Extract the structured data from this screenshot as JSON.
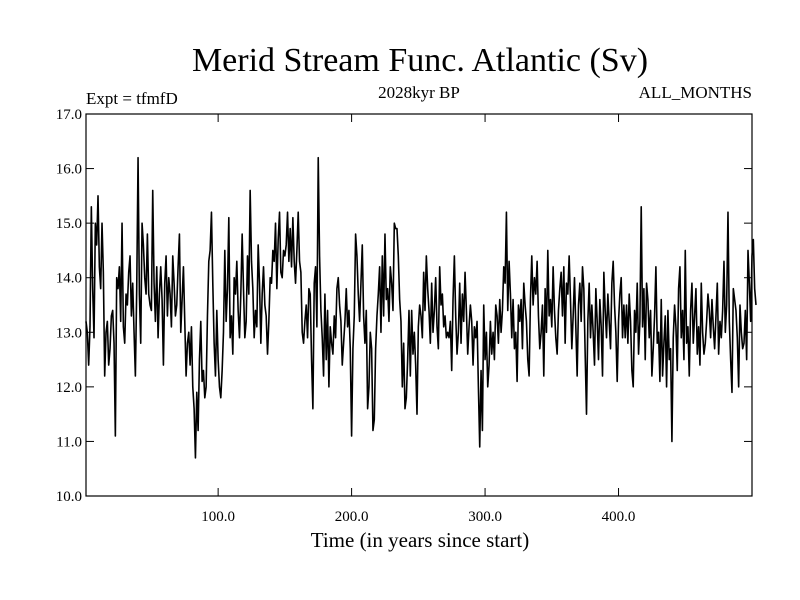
{
  "chart_data": {
    "type": "line",
    "title": "Merid Stream Func. Atlantic (Sv)",
    "subtitle_left": "Expt = tfmfD",
    "subtitle_center": "2028kyr BP",
    "subtitle_right": "ALL_MONTHS",
    "xlabel": "Time (in years since start)",
    "ylabel": "",
    "xlim": [
      1,
      500
    ],
    "ylim": [
      10.0,
      17.0
    ],
    "xticks": [
      100,
      200,
      300,
      400
    ],
    "xtick_labels": [
      "100.0",
      "200.0",
      "300.0",
      "400.0"
    ],
    "yticks": [
      10,
      11,
      12,
      13,
      14,
      15,
      16,
      17
    ],
    "ytick_labels": [
      "10.0",
      "11.0",
      "12.0",
      "13.0",
      "14.0",
      "15.0",
      "16.0",
      "17.0"
    ],
    "series": [
      {
        "name": "Merid Stream Func. Atlantic",
        "x_start": 1,
        "x_step": 1,
        "values": [
          13.2,
          13.0,
          12.4,
          13.1,
          15.3,
          13.8,
          12.9,
          15.0,
          14.6,
          15.5,
          14.2,
          13.8,
          15.0,
          14.1,
          12.2,
          13.0,
          13.2,
          12.4,
          12.7,
          13.3,
          13.4,
          12.8,
          11.1,
          14.0,
          13.8,
          14.2,
          13.2,
          15.0,
          13.1,
          12.8,
          13.7,
          13.5,
          14.1,
          14.4,
          13.3,
          13.9,
          13.0,
          12.2,
          13.8,
          16.2,
          13.7,
          12.8,
          15.0,
          14.6,
          14.0,
          13.7,
          14.8,
          13.7,
          13.5,
          13.4,
          15.6,
          13.9,
          13.2,
          14.2,
          12.9,
          13.7,
          14.2,
          13.6,
          12.4,
          13.9,
          14.4,
          13.3,
          14.0,
          13.7,
          13.1,
          14.4,
          13.9,
          13.3,
          13.5,
          14.2,
          14.8,
          13.0,
          13.6,
          14.2,
          13.2,
          12.2,
          12.8,
          13.0,
          12.4,
          13.1,
          12.0,
          11.6,
          10.7,
          11.9,
          11.2,
          12.5,
          13.2,
          12.1,
          12.3,
          11.8,
          12.0,
          13.3,
          14.3,
          14.5,
          15.2,
          13.9,
          12.8,
          12.2,
          13.4,
          12.5,
          12.0,
          11.8,
          12.3,
          13.0,
          14.5,
          13.2,
          13.8,
          15.1,
          12.9,
          13.3,
          12.6,
          14.0,
          13.7,
          14.3,
          13.4,
          12.9,
          13.7,
          14.8,
          13.8,
          12.9,
          13.2,
          14.4,
          13.7,
          15.6,
          14.3,
          13.8,
          12.9,
          13.4,
          13.1,
          14.6,
          13.9,
          12.8,
          13.7,
          14.2,
          13.5,
          13.3,
          12.6,
          13.2,
          14.0,
          13.9,
          14.5,
          14.3,
          15.0,
          13.8,
          14.7,
          15.2,
          14.1,
          14.0,
          14.5,
          14.4,
          14.6,
          15.2,
          14.3,
          14.9,
          14.2,
          15.1,
          14.3,
          13.9,
          14.5,
          15.2,
          14.3,
          14.1,
          13.0,
          12.8,
          13.2,
          13.5,
          12.9,
          13.8,
          13.7,
          12.5,
          11.6,
          13.9,
          14.2,
          13.1,
          16.2,
          14.4,
          13.4,
          12.9,
          12.2,
          13.7,
          12.5,
          13.4,
          12.0,
          13.1,
          12.8,
          12.6,
          13.3,
          12.9,
          13.8,
          14.0,
          13.5,
          13.2,
          12.4,
          12.8,
          13.2,
          13.8,
          13.1,
          13.4,
          12.7,
          11.1,
          12.7,
          13.3,
          14.8,
          14.4,
          13.7,
          13.2,
          13.9,
          14.6,
          13.3,
          12.8,
          13.4,
          11.6,
          12.0,
          13.0,
          12.7,
          11.2,
          11.4,
          12.7,
          13.3,
          13.7,
          14.2,
          13.0,
          14.4,
          13.3,
          14.8,
          13.6,
          13.8,
          13.2,
          14.2,
          13.9,
          13.4,
          15.0,
          14.9,
          14.9,
          14.4,
          13.6,
          13.2,
          12.0,
          12.8,
          11.6,
          11.8,
          12.5,
          13.4,
          12.2,
          13.4,
          12.6,
          13.0,
          12.4,
          11.5,
          13.1,
          13.5,
          13.3,
          12.9,
          14.1,
          13.4,
          14.4,
          13.8,
          13.4,
          12.8,
          13.9,
          13.0,
          13.4,
          14.0,
          13.1,
          12.7,
          14.2,
          13.5,
          13.7,
          13.1,
          13.3,
          12.9,
          13.0,
          12.9,
          13.2,
          12.3,
          13.6,
          14.4,
          13.3,
          12.6,
          13.0,
          13.9,
          12.8,
          13.7,
          13.2,
          14.1,
          13.4,
          12.6,
          13.1,
          13.5,
          13.2,
          12.4,
          13.1,
          12.9,
          13.2,
          12.0,
          10.9,
          12.3,
          11.2,
          13.5,
          12.5,
          13.0,
          12.0,
          12.4,
          13.2,
          12.6,
          13.0,
          12.5,
          13.5,
          13.3,
          12.8,
          13.6,
          13.0,
          13.4,
          14.2,
          13.9,
          15.2,
          13.4,
          14.3,
          13.7,
          12.9,
          13.6,
          12.7,
          13.0,
          12.1,
          13.5,
          13.2,
          13.6,
          12.7,
          13.9,
          13.5,
          13.2,
          12.5,
          12.2,
          13.6,
          14.4,
          13.5,
          14.0,
          13.7,
          14.3,
          13.3,
          12.7,
          13.0,
          13.5,
          12.2,
          13.8,
          13.0,
          14.5,
          13.3,
          13.6,
          13.1,
          14.2,
          13.4,
          12.9,
          12.6,
          13.4,
          13.8,
          14.1,
          13.3,
          14.2,
          12.8,
          13.9,
          13.7,
          14.4,
          13.6,
          12.7,
          13.3,
          14.0,
          13.1,
          12.2,
          13.5,
          13.9,
          13.2,
          14.2,
          13.8,
          12.6,
          11.5,
          13.2,
          13.9,
          12.9,
          13.5,
          13.0,
          12.4,
          13.8,
          13.2,
          12.5,
          13.6,
          13.1,
          12.2,
          14.1,
          13.4,
          12.9,
          13.7,
          13.2,
          12.7,
          13.9,
          14.3,
          13.5,
          13.0,
          12.1,
          13.2,
          13.7,
          14.0,
          12.9,
          13.5,
          12.9,
          13.5,
          12.8,
          13.7,
          13.2,
          12.3,
          12.0,
          13.4,
          13.0,
          13.9,
          12.6,
          13.2,
          15.3,
          13.1,
          13.8,
          12.5,
          13.9,
          13.6,
          12.9,
          13.4,
          12.2,
          12.7,
          13.3,
          14.2,
          12.8,
          13.0,
          12.1,
          13.6,
          12.2,
          12.8,
          13.3,
          12.0,
          13.4,
          12.5,
          12.7,
          11.0,
          12.9,
          13.5,
          13.1,
          12.3,
          13.8,
          14.2,
          12.9,
          13.4,
          12.5,
          14.5,
          12.8,
          13.1,
          12.2,
          13.4,
          13.9,
          12.8,
          13.3,
          13.8,
          12.6,
          13.1,
          12.4,
          13.9,
          13.0,
          12.6,
          12.8,
          13.2,
          13.7,
          13.4,
          12.9,
          13.6,
          13.1,
          12.7,
          13.3,
          13.9,
          12.6,
          13.2,
          12.9,
          13.4,
          14.3,
          13.0,
          13.5,
          15.2,
          13.2,
          12.5,
          11.9,
          13.8,
          13.6,
          13.4,
          12.9,
          12.0,
          13.5,
          13.0,
          12.7,
          12.8,
          13.4,
          12.5,
          14.5,
          13.9,
          13.2,
          14.4,
          14.7,
          13.8,
          13.5
        ]
      }
    ]
  }
}
